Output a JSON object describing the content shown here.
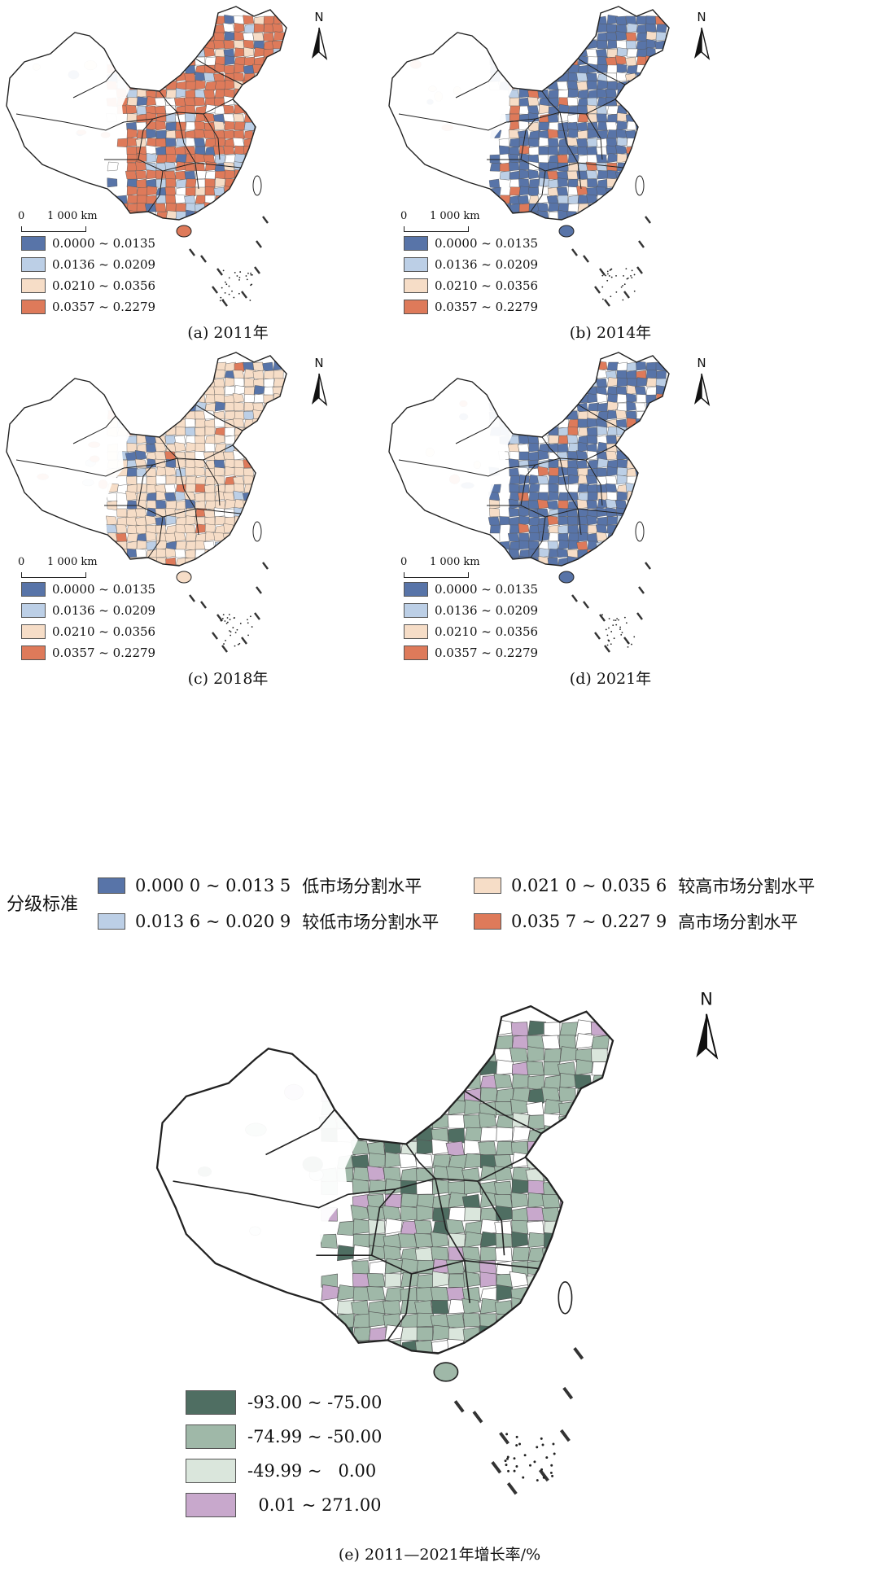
{
  "colors": {
    "low": "#5874a8",
    "lower": "#bccfe6",
    "higher": "#f6ddc7",
    "high": "#de7a5a",
    "g_strong": "#4f6e62",
    "g_mid": "#9fb8a8",
    "g_light": "#dae6dc",
    "g_up": "#c8a8cc",
    "outline": "#222222",
    "empty": "#ffffff"
  },
  "north_label": "N",
  "scale": {
    "zero": "0",
    "distance": "1 000",
    "unit": "km"
  },
  "legend_small": [
    {
      "label": "0.0000 ~ 0.0135",
      "color": "#5874a8"
    },
    {
      "label": "0.0136 ~ 0.0209",
      "color": "#bccfe6"
    },
    {
      "label": "0.0210 ~ 0.0356",
      "color": "#f6ddc7"
    },
    {
      "label": "0.0357 ~ 0.2279",
      "color": "#de7a5a"
    }
  ],
  "panels": [
    {
      "id": "a",
      "caption": "(a) 2011年",
      "dominant": "high"
    },
    {
      "id": "b",
      "caption": "(b) 2014年",
      "dominant": "low"
    },
    {
      "id": "c",
      "caption": "(c) 2018年",
      "dominant": "higher"
    },
    {
      "id": "d",
      "caption": "(d) 2021年",
      "dominant": "low"
    }
  ],
  "classification": {
    "title": "分级标准",
    "items": [
      {
        "range": "0.000 0 ~ 0.013 5",
        "tier": "低市场分割水平",
        "color": "#5874a8"
      },
      {
        "range": "0.013 6 ~ 0.020 9",
        "tier": "较低市场分割水平",
        "color": "#bccfe6"
      },
      {
        "range": "0.021 0 ~ 0.035 6",
        "tier": "较高市场分割水平",
        "color": "#f6ddc7"
      },
      {
        "range": "0.035 7 ~ 0.227 9",
        "tier": "高市场分割水平",
        "color": "#de7a5a"
      }
    ]
  },
  "growth": {
    "caption": "(e) 2011—2021年增长率/%",
    "legend": [
      {
        "label": "-93.00 ~ -75.00",
        "color": "#4f6e62"
      },
      {
        "label": "-74.99 ~ -50.00",
        "color": "#9fb8a8"
      },
      {
        "label": "-49.99 ~   0.00",
        "color": "#dae6dc"
      },
      {
        "label": "  0.01 ~ 271.00",
        "color": "#c8a8cc"
      }
    ]
  }
}
